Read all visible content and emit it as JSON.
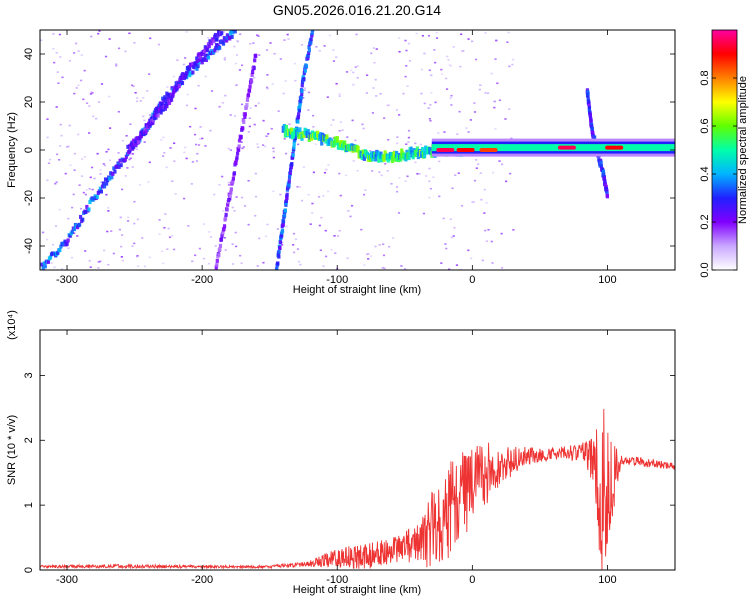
{
  "figure": {
    "title": "GN05.2026.016.21.20.G14"
  },
  "chart_data": [
    {
      "type": "heatmap",
      "name": "spectrogram",
      "xlabel": "Height of straight line (km)",
      "ylabel": "Frequency (Hz)",
      "xlim": [
        -320,
        150
      ],
      "ylim": [
        -50,
        50
      ],
      "xticks": [
        -300,
        -200,
        -100,
        0,
        100
      ],
      "yticks": [
        -40,
        -20,
        0,
        20,
        40
      ],
      "colorbar": {
        "label": "Normalized spectral amplitude",
        "range": [
          0,
          1
        ],
        "ticks": [
          0.0,
          0.2,
          0.4,
          0.6,
          0.8
        ],
        "tick_labels": [
          "0.0",
          "0.2",
          "0.4",
          "0.6",
          "0.8"
        ],
        "colormap": [
          "#ffffff",
          "#c9a8ff",
          "#8000ff",
          "#2020ff",
          "#00b4ff",
          "#00ffaa",
          "#60ff00",
          "#ffff00",
          "#ff8000",
          "#ff0000",
          "#ff00a0"
        ]
      },
      "tracks": [
        {
          "name": "rising-diagonal-1",
          "points": [
            [
              -320,
              -50
            ],
            [
              -300,
              -38
            ],
            [
              -280,
              -20
            ],
            [
              -260,
              -5
            ],
            [
              -240,
              10
            ],
            [
              -230,
              20
            ],
            [
              -210,
              32
            ],
            [
              -190,
              42
            ],
            [
              -175,
              50
            ]
          ],
          "amplitude": 0.35
        },
        {
          "name": "rising-diagonal-2",
          "points": [
            [
              -255,
              0
            ],
            [
              -245,
              6
            ],
            [
              -235,
              14
            ],
            [
              -225,
              20
            ],
            [
              -215,
              30
            ],
            [
              -200,
              40
            ],
            [
              -185,
              50
            ]
          ],
          "amplitude": 0.25
        },
        {
          "name": "steep-line-1",
          "points": [
            [
              -145,
              -50
            ],
            [
              -140,
              -30
            ],
            [
              -135,
              -10
            ],
            [
              -130,
              10
            ],
            [
              -125,
              30
            ],
            [
              -118,
              50
            ]
          ],
          "amplitude": 0.35
        },
        {
          "name": "steep-line-2",
          "points": [
            [
              -190,
              -50
            ],
            [
              -180,
              -20
            ],
            [
              -170,
              10
            ],
            [
              -160,
              40
            ]
          ],
          "amplitude": 0.2
        },
        {
          "name": "zero-doppler-band",
          "points": [
            [
              -140,
              8
            ],
            [
              -120,
              6
            ],
            [
              -100,
              3
            ],
            [
              -80,
              -2
            ],
            [
              -60,
              -3
            ],
            [
              -40,
              -1
            ],
            [
              -20,
              0
            ],
            [
              0,
              0
            ],
            [
              50,
              1
            ],
            [
              100,
              1
            ],
            [
              150,
              1
            ]
          ],
          "amplitude": 0.55
        },
        {
          "name": "spike-near-90km",
          "points": [
            [
              85,
              25
            ],
            [
              88,
              10
            ],
            [
              92,
              0
            ],
            [
              97,
              -10
            ],
            [
              100,
              -20
            ]
          ],
          "amplitude": 0.3
        }
      ],
      "hotspots": [
        {
          "x": -20,
          "y": 0,
          "amplitude": 0.95
        },
        {
          "x": -5,
          "y": 0,
          "amplitude": 0.9
        },
        {
          "x": 12,
          "y": 0,
          "amplitude": 0.85
        },
        {
          "x": 70,
          "y": 1,
          "amplitude": 0.95
        },
        {
          "x": 105,
          "y": 1,
          "amplitude": 0.9
        }
      ]
    },
    {
      "type": "line",
      "name": "snr",
      "xlabel": "Height of straight line (km)",
      "ylabel": "SNR (10 * v/v)",
      "scale_label": "(x10⁴)",
      "xlim": [
        -320,
        150
      ],
      "ylim": [
        0,
        3.7
      ],
      "xticks": [
        -300,
        -200,
        -100,
        0,
        100
      ],
      "yticks": [
        0,
        1,
        2,
        3
      ],
      "line_color": "#ee3333",
      "envelope": {
        "x": [
          -320,
          -250,
          -200,
          -150,
          -120,
          -100,
          -80,
          -60,
          -40,
          -30,
          -20,
          -10,
          0,
          10,
          20,
          40,
          60,
          80,
          90,
          95,
          98,
          102,
          110,
          150
        ],
        "base": [
          0.05,
          0.06,
          0.05,
          0.05,
          0.1,
          0.2,
          0.2,
          0.3,
          0.4,
          0.6,
          0.9,
          1.1,
          1.3,
          1.5,
          1.6,
          1.75,
          1.8,
          1.8,
          1.7,
          1.1,
          1.1,
          1.3,
          1.7,
          1.6
        ],
        "spread": [
          0.02,
          0.03,
          0.02,
          0.02,
          0.05,
          0.15,
          0.2,
          0.2,
          0.3,
          0.6,
          0.8,
          0.7,
          0.6,
          0.5,
          0.3,
          0.15,
          0.1,
          0.15,
          0.4,
          1.2,
          1.6,
          0.8,
          0.08,
          0.05
        ]
      }
    }
  ]
}
